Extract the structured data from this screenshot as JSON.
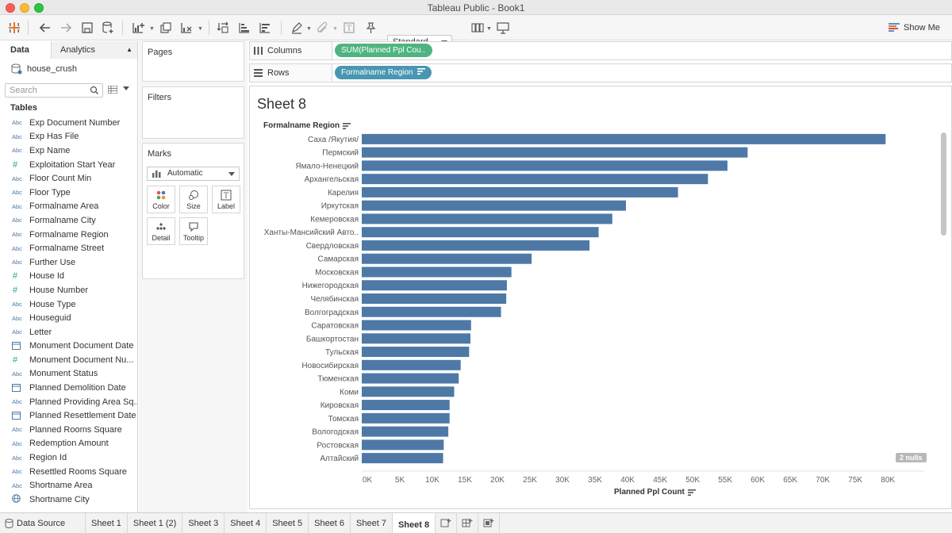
{
  "window": {
    "title": "Tableau Public - Book1"
  },
  "toolbar": {
    "fit_value": "Standard",
    "show_me": "Show Me"
  },
  "data_pane": {
    "tab_data": "Data",
    "tab_analytics": "Analytics",
    "datasource": "house_crush",
    "search_placeholder": "Search",
    "tables_heading": "Tables",
    "fields": [
      {
        "type": "abc",
        "label": "Exp Document Number"
      },
      {
        "type": "abc",
        "label": "Exp Has File"
      },
      {
        "type": "abc",
        "label": "Exp Name"
      },
      {
        "type": "num",
        "label": "Exploitation Start Year"
      },
      {
        "type": "abc",
        "label": "Floor Count Min"
      },
      {
        "type": "abc",
        "label": "Floor Type"
      },
      {
        "type": "abc",
        "label": "Formalname Area"
      },
      {
        "type": "abc",
        "label": "Formalname City"
      },
      {
        "type": "abc",
        "label": "Formalname Region"
      },
      {
        "type": "abc",
        "label": "Formalname Street"
      },
      {
        "type": "abc",
        "label": "Further Use"
      },
      {
        "type": "num",
        "label": "House Id"
      },
      {
        "type": "num",
        "label": "House Number"
      },
      {
        "type": "abc",
        "label": "House Type"
      },
      {
        "type": "abc",
        "label": "Houseguid"
      },
      {
        "type": "abc",
        "label": "Letter"
      },
      {
        "type": "date",
        "label": "Monument Document Date"
      },
      {
        "type": "num",
        "label": "Monument Document Nu..."
      },
      {
        "type": "abc",
        "label": "Monument Status"
      },
      {
        "type": "date",
        "label": "Planned Demolition Date"
      },
      {
        "type": "abc",
        "label": "Planned Providing Area Sq..."
      },
      {
        "type": "date",
        "label": "Planned Resettlement Date"
      },
      {
        "type": "abc",
        "label": "Planned Rooms Square"
      },
      {
        "type": "abc",
        "label": "Redemption Amount"
      },
      {
        "type": "abc",
        "label": "Region Id"
      },
      {
        "type": "abc",
        "label": "Resettled Rooms Square"
      },
      {
        "type": "abc",
        "label": "Shortname Area"
      },
      {
        "type": "geo",
        "label": "Shortname City"
      }
    ],
    "icon_text": {
      "abc": "Abc",
      "num": "#"
    }
  },
  "cards": {
    "pages": "Pages",
    "filters": "Filters",
    "marks": "Marks",
    "mark_type": "Automatic",
    "buttons": {
      "color": "Color",
      "size": "Size",
      "label": "Label",
      "detail": "Detail",
      "tooltip": "Tooltip"
    }
  },
  "shelves": {
    "columns_label": "Columns",
    "columns_pill": "SUM(Planned Ppl Cou..",
    "rows_label": "Rows",
    "rows_pill": "Formalname Region"
  },
  "sheet": {
    "title": "Sheet 8",
    "row_header": "Formalname Region",
    "axis_title": "Planned Ppl Count",
    "nulls_badge": "2 nulls"
  },
  "chart_data": {
    "type": "bar",
    "orientation": "horizontal",
    "bar_color": "#4e79a7",
    "categories": [
      "Саха /Якутия/",
      "Пермский",
      "Ямало-Ненецкий",
      "Архангельская",
      "Карелия",
      "Иркутская",
      "Кемеровская",
      "Ханты-Мансийский Авто..",
      "Свердловская",
      "Самарская",
      "Московская",
      "Нижегородская",
      "Челябинская",
      "Волгоградская",
      "Саратовская",
      "Башкортостан",
      "Тульская",
      "Новосибирская",
      "Тюменская",
      "Коми",
      "Кировская",
      "Томская",
      "Вологодская",
      "Ростовская",
      "Алтайский"
    ],
    "values": [
      80500,
      59300,
      56200,
      53200,
      48600,
      40600,
      38500,
      36400,
      35000,
      26100,
      23000,
      22300,
      22200,
      21400,
      16800,
      16700,
      16500,
      15200,
      14900,
      14200,
      13500,
      13500,
      13300,
      12600,
      12500
    ],
    "x_ticks": [
      "0K",
      "5K",
      "10K",
      "15K",
      "20K",
      "25K",
      "30K",
      "35K",
      "40K",
      "45K",
      "50K",
      "55K",
      "60K",
      "65K",
      "70K",
      "75K",
      "80K"
    ],
    "xlim": [
      0,
      84000
    ],
    "xlabel": "Planned Ppl Count",
    "ylabel": "Formalname Region",
    "grid": false,
    "legend": "none"
  },
  "bottom_tabs": {
    "data_source": "Data Source",
    "sheets": [
      "Sheet 1",
      "Sheet 1 (2)",
      "Sheet 3",
      "Sheet 4",
      "Sheet 5",
      "Sheet 6",
      "Sheet 7",
      "Sheet 8"
    ],
    "active": "Sheet 8"
  }
}
